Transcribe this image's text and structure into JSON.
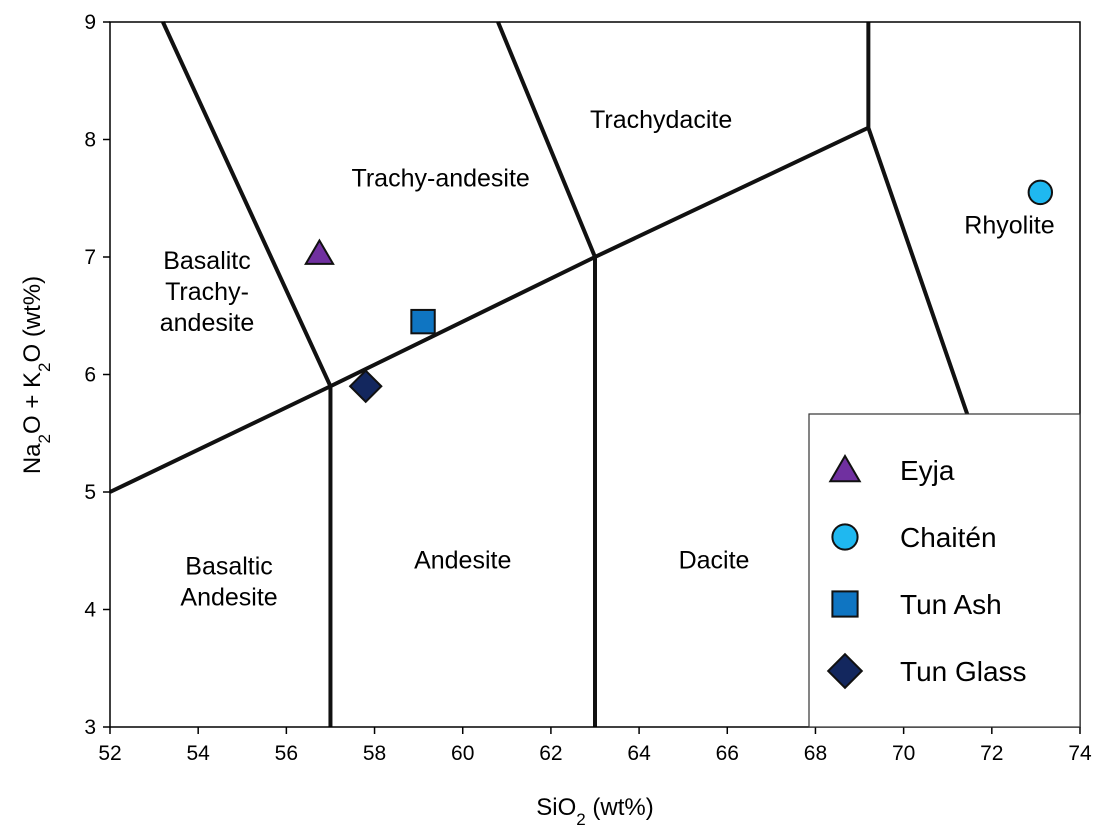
{
  "chart_data": {
    "type": "scatter",
    "x_axis": {
      "ticks": [
        "52",
        "54",
        "56",
        "58",
        "60",
        "62",
        "64",
        "66",
        "68",
        "70",
        "72",
        "74"
      ],
      "xlim": [
        52,
        74
      ]
    },
    "y_axis": {
      "ticks": [
        "3",
        "4",
        "5",
        "6",
        "7",
        "8",
        "9"
      ],
      "ylim": [
        3,
        9
      ]
    },
    "xlabel": {
      "main": "SiO",
      "sub": "2",
      "rest": " (wt%)"
    },
    "ylabel": {
      "p1": "Na",
      "s1": "2",
      "p2": "O + K",
      "s2": "2",
      "p3": "O (wt%)"
    },
    "grid": false,
    "field_boundaries": [
      [
        [
          52,
          5
        ],
        [
          57,
          5.9
        ],
        [
          63,
          7
        ],
        [
          69.2,
          8.1
        ]
      ],
      [
        [
          53.2,
          9
        ],
        [
          57,
          5.9
        ],
        [
          57,
          3
        ]
      ],
      [
        [
          60.8,
          9
        ],
        [
          63,
          7
        ],
        [
          63,
          3
        ]
      ],
      [
        [
          69.2,
          9
        ],
        [
          69.2,
          8.1
        ],
        [
          71.5,
          5.6
        ]
      ]
    ],
    "field_labels": [
      {
        "lines": [
          "Basalitc",
          "Trachy-",
          "andesite"
        ],
        "x": 54.2,
        "y": 6.9
      },
      {
        "lines": [
          "Trachy-andesite"
        ],
        "x": 59.5,
        "y": 7.6
      },
      {
        "lines": [
          "Trachydacite"
        ],
        "x": 64.5,
        "y": 8.1
      },
      {
        "lines": [
          "Rhyolite"
        ],
        "x": 72.4,
        "y": 7.2
      },
      {
        "lines": [
          "Basaltic",
          "Andesite"
        ],
        "x": 54.7,
        "y": 4.3
      },
      {
        "lines": [
          "Andesite"
        ],
        "x": 60,
        "y": 4.35
      },
      {
        "lines": [
          "Dacite"
        ],
        "x": 65.7,
        "y": 4.35
      }
    ],
    "series": [
      {
        "name": "Eyja",
        "marker": "triangle",
        "color": "#7030A0",
        "x": [
          56.75
        ],
        "y": [
          7.03
        ]
      },
      {
        "name": "Chaitén",
        "marker": "circle",
        "color": "#1FB8F0",
        "x": [
          73.1
        ],
        "y": [
          7.55
        ]
      },
      {
        "name": "Tun Ash",
        "marker": "square",
        "color": "#0F75C2",
        "x": [
          59.1
        ],
        "y": [
          6.45
        ]
      },
      {
        "name": "Tun Glass",
        "marker": "diamond",
        "color": "#13275E",
        "x": [
          57.8
        ],
        "y": [
          5.9
        ]
      }
    ],
    "legend_placement": "lower-right"
  }
}
